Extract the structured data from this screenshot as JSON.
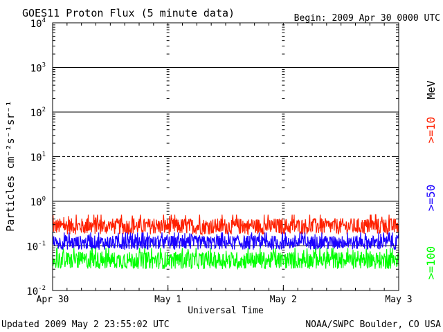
{
  "chart_data": {
    "type": "line",
    "title": "GOES11 Proton Flux (5 minute data)",
    "begin": "Begin: 2009 Apr 30 0000 UTC",
    "xlabel": "Universal Time",
    "ylabel": "Particles cm⁻²s⁻¹sr⁻¹",
    "y_scale": "log",
    "ylim": [
      0.01,
      10000
    ],
    "y_ticks": [
      {
        "value": 10000,
        "base": "10",
        "exp": "4"
      },
      {
        "value": 1000,
        "base": "10",
        "exp": "3"
      },
      {
        "value": 100,
        "base": "10",
        "exp": "2"
      },
      {
        "value": 10,
        "base": "10",
        "exp": "1"
      },
      {
        "value": 1,
        "base": "10",
        "exp": "0"
      },
      {
        "value": 0.1,
        "base": "10",
        "exp": "-1"
      },
      {
        "value": 0.01,
        "base": "10",
        "exp": "-2"
      }
    ],
    "x_ticks": [
      "Apr 30",
      "May 1",
      "May 2",
      "May 3"
    ],
    "xlim": [
      0,
      3
    ],
    "units_label": "MeV",
    "series": [
      {
        "name": ">=10",
        "color": "#ff2000",
        "typical_range": [
          0.15,
          0.5
        ]
      },
      {
        "name": ">=50",
        "color": "#1a00ff",
        "typical_range": [
          0.07,
          0.2
        ]
      },
      {
        "name": ">=100",
        "color": "#00ff00",
        "typical_range": [
          0.025,
          0.09
        ]
      }
    ],
    "thresholds": [
      {
        "value": 10,
        "style": "dashed"
      }
    ],
    "grid": true
  },
  "footer": {
    "updated": "Updated 2009 May  2 23:55:02 UTC",
    "source": "NOAA/SWPC Boulder, CO USA"
  }
}
